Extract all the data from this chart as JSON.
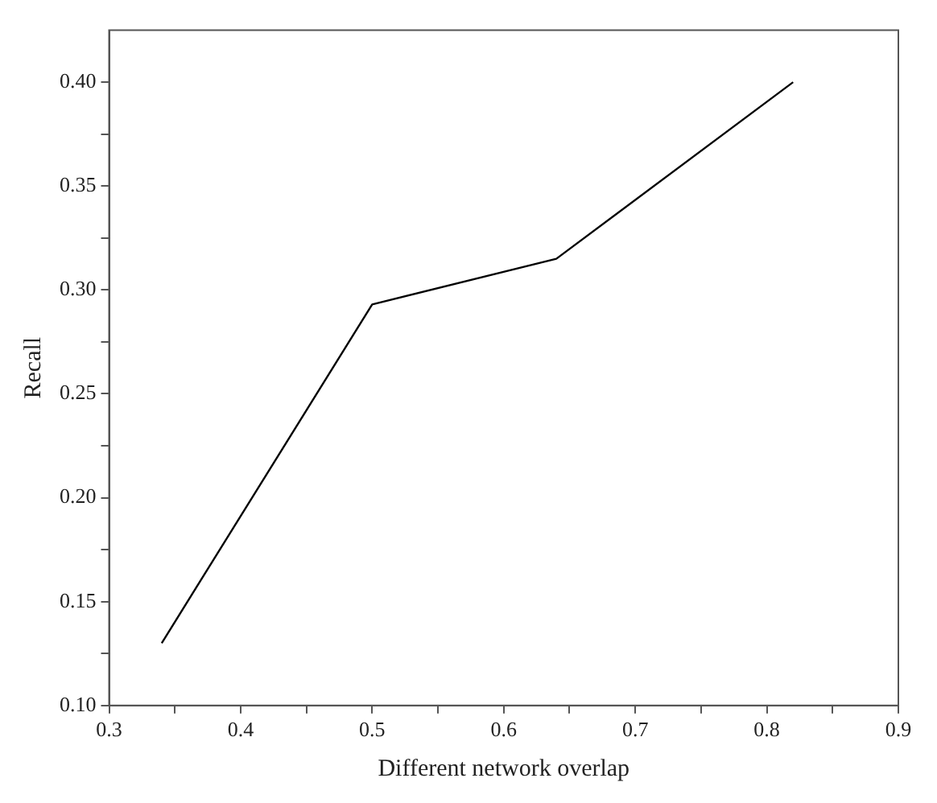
{
  "chart_data": {
    "type": "line",
    "xlabel": "Different network overlap",
    "ylabel": "Recall",
    "x": [
      0.34,
      0.5,
      0.64,
      0.82
    ],
    "series": [
      {
        "color": "#000000",
        "values": [
          0.13,
          0.293,
          0.315,
          0.4
        ]
      }
    ],
    "xlim": [
      0.3,
      0.9
    ],
    "ylim": [
      0.1,
      0.425
    ],
    "xticks": [
      0.3,
      {
        "value": 0.35,
        "label": null
      },
      0.4,
      {
        "value": 0.45,
        "label": null
      },
      0.5,
      {
        "value": 0.55,
        "label": null
      },
      0.6,
      {
        "value": 0.65,
        "label": null
      },
      0.7,
      {
        "value": 0.75,
        "label": null
      },
      0.8,
      {
        "value": 0.85,
        "label": null
      },
      0.9
    ],
    "yticks": [
      {
        "value": 0.1,
        "label": "0.10"
      },
      {
        "value": 0.125,
        "label": null
      },
      {
        "value": 0.15,
        "label": "0.15"
      },
      {
        "value": 0.175,
        "label": null
      },
      {
        "value": 0.2,
        "label": "0.20"
      },
      {
        "value": 0.225,
        "label": null
      },
      {
        "value": 0.25,
        "label": "0.25"
      },
      {
        "value": 0.275,
        "label": null
      },
      {
        "value": 0.3,
        "label": "0.30"
      },
      {
        "value": 0.325,
        "label": null
      },
      {
        "value": 0.35,
        "label": "0.35"
      },
      {
        "value": 0.375,
        "label": null
      },
      {
        "value": 0.4,
        "label": "0.40"
      }
    ],
    "grid": false,
    "legend": false,
    "marker": "none",
    "line_style": "solid"
  }
}
